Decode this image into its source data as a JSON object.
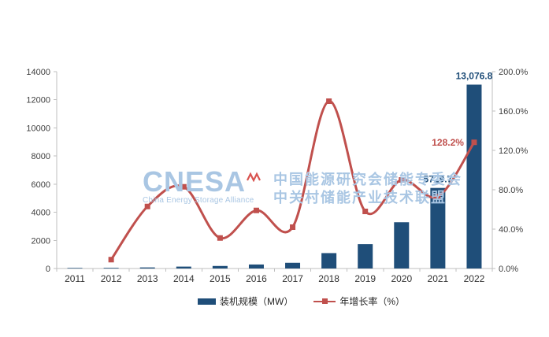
{
  "watermark": {
    "logo": "CNESA",
    "logo_subtitle": "China Energy Storage Alliance",
    "line1": "中国能源研究会储能专委会",
    "line2": "中关村储能产业技术联盟"
  },
  "colors": {
    "bar": "#1f4e79",
    "line": "#c0504d",
    "axis": "#bfbfbf",
    "bar_label": "#1f4e79",
    "growth_label": "#c0504d",
    "watermark_blue": "#a9c6e3",
    "watermark_red": "#d9534f"
  },
  "chart_data": {
    "type": "bar",
    "title": "",
    "grid": false,
    "legend_position": "bottom",
    "categories": [
      "2011",
      "2012",
      "2013",
      "2014",
      "2015",
      "2016",
      "2017",
      "2018",
      "2019",
      "2020",
      "2021",
      "2022"
    ],
    "series": [
      {
        "name": "装机规模（MW）",
        "type": "bar",
        "axis": "left",
        "color": "#1f4e79",
        "values": [
          40,
          45,
          75,
          135,
          180,
          285,
          405,
          1095,
          1730,
          3290,
          5729.7,
          13076.8
        ]
      },
      {
        "name": "年增长率（%）",
        "type": "line",
        "axis": "right",
        "color": "#c0504d",
        "values": [
          null,
          9,
          63,
          83,
          31,
          59,
          42,
          170,
          58,
          90,
          73,
          128.2
        ]
      }
    ],
    "left_axis": {
      "min": 0,
      "max": 14000,
      "step": 2000,
      "tick_labels": [
        "0",
        "2000",
        "4000",
        "6000",
        "8000",
        "10000",
        "12000",
        "14000"
      ]
    },
    "right_axis": {
      "min": 0,
      "max": 200,
      "step": 40,
      "tick_labels": [
        "0.0%",
        "40.0%",
        "80.0%",
        "120.0%",
        "160.0%",
        "200.0%"
      ]
    },
    "data_labels": [
      {
        "year": "2021",
        "series": "装机规模（MW）",
        "text": "5729.7"
      },
      {
        "year": "2022",
        "series": "装机规模（MW）",
        "text": "13,076.8"
      },
      {
        "year": "2022",
        "series": "年增长率（%）",
        "text": "128.2%"
      }
    ]
  }
}
